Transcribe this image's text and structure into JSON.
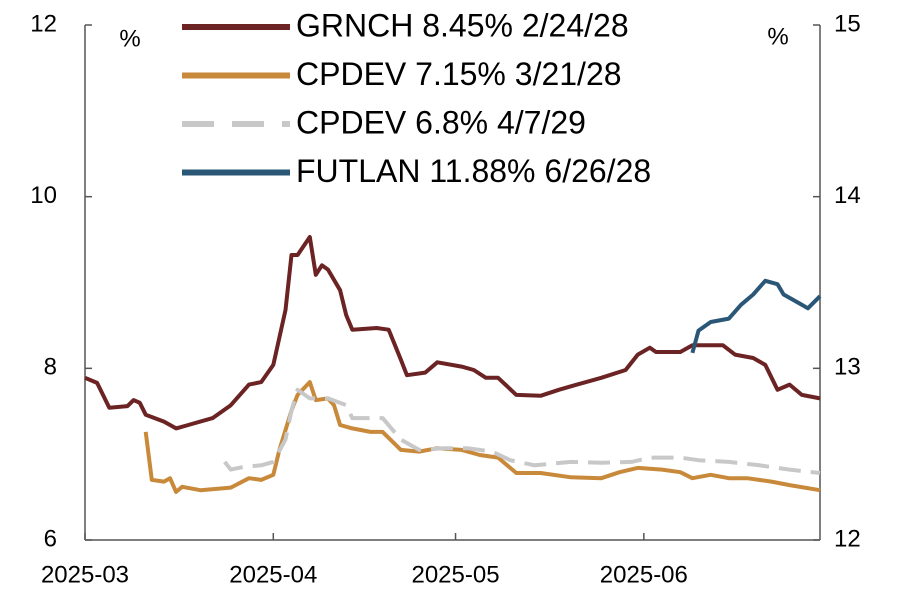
{
  "chart_data": {
    "type": "line",
    "ylabel": "%",
    "y2label": "%",
    "xlim": [
      0,
      121
    ],
    "xticks": [
      {
        "value": 0,
        "label": "2025-03"
      },
      {
        "value": 31,
        "label": "2025-04"
      },
      {
        "value": 61,
        "label": "2025-05"
      },
      {
        "value": 92,
        "label": "2025-06"
      }
    ],
    "ylim": [
      6,
      12
    ],
    "yticks": [
      6,
      8,
      10,
      12
    ],
    "y2lim": [
      12,
      15
    ],
    "y2ticks": [
      12,
      13,
      14,
      15
    ],
    "legend": "top",
    "series": [
      {
        "name": "GRNCH 8.45% 2/24/28",
        "color": "#6b2323",
        "line_style": "solid",
        "axis": "y",
        "x": [
          0,
          2,
          4,
          7,
          8,
          9,
          10,
          13,
          15,
          17,
          21,
          24,
          27,
          29,
          31,
          33,
          34,
          35,
          37,
          38,
          39,
          40,
          42,
          43,
          44,
          48,
          50,
          52,
          53,
          56,
          58,
          62,
          64,
          66,
          68,
          71,
          75,
          78,
          81,
          85,
          89,
          91,
          93,
          94,
          98,
          100,
          105,
          107,
          110,
          112,
          114,
          116,
          118,
          121
        ],
        "values": [
          7.89,
          7.83,
          7.54,
          7.56,
          7.63,
          7.6,
          7.46,
          7.38,
          7.3,
          7.34,
          7.42,
          7.57,
          7.81,
          7.84,
          8.04,
          8.68,
          9.32,
          9.32,
          9.53,
          9.09,
          9.2,
          9.15,
          8.91,
          8.62,
          8.45,
          8.47,
          8.45,
          8.1,
          7.92,
          7.95,
          8.07,
          8.02,
          7.98,
          7.89,
          7.89,
          7.69,
          7.68,
          7.75,
          7.81,
          7.89,
          7.98,
          8.16,
          8.24,
          8.19,
          8.19,
          8.27,
          8.27,
          8.16,
          8.12,
          8.04,
          7.75,
          7.81,
          7.69,
          7.65
        ]
      },
      {
        "name": "CPDEV 7.15% 3/21/28",
        "color": "#c8893a",
        "line_style": "solid",
        "axis": "y",
        "x": [
          10,
          11,
          13,
          14,
          15,
          16,
          19,
          24,
          27,
          29,
          31,
          32,
          34,
          35,
          37,
          38,
          40,
          41,
          42,
          44,
          47,
          49,
          52,
          55,
          58,
          62,
          65,
          68,
          71,
          75,
          80,
          85,
          88,
          91,
          95,
          98,
          100,
          103,
          106,
          109,
          113,
          116,
          121
        ],
        "values": [
          7.26,
          6.7,
          6.68,
          6.72,
          6.56,
          6.62,
          6.58,
          6.61,
          6.72,
          6.7,
          6.76,
          7.05,
          7.51,
          7.69,
          7.84,
          7.63,
          7.65,
          7.57,
          7.34,
          7.3,
          7.26,
          7.26,
          7.05,
          7.03,
          7.07,
          7.05,
          6.99,
          6.96,
          6.78,
          6.78,
          6.73,
          6.72,
          6.79,
          6.84,
          6.82,
          6.79,
          6.72,
          6.76,
          6.72,
          6.72,
          6.68,
          6.64,
          6.58
        ]
      },
      {
        "name": "CPDEV 6.8% 4/7/29",
        "color": "#c8c8c8",
        "line_style": "dashed",
        "axis": "y",
        "x": [
          23,
          24,
          26,
          29,
          31,
          33,
          34,
          35,
          37,
          40,
          43,
          44,
          49,
          52,
          55,
          59,
          63,
          67,
          70,
          74,
          80,
          85,
          90,
          93,
          98,
          101,
          106,
          111,
          116,
          121
        ],
        "values": [
          6.91,
          6.82,
          6.85,
          6.87,
          6.91,
          7.17,
          7.51,
          7.75,
          7.65,
          7.65,
          7.57,
          7.42,
          7.42,
          7.17,
          7.05,
          7.07,
          7.07,
          7.03,
          6.93,
          6.87,
          6.91,
          6.9,
          6.91,
          6.96,
          6.96,
          6.93,
          6.91,
          6.87,
          6.82,
          6.78
        ]
      },
      {
        "name": "FUTLAN 11.88% 6/26/28",
        "color": "#2b5777",
        "line_style": "solid",
        "axis": "y2",
        "x": [
          100,
          101,
          103,
          106,
          108,
          110,
          112,
          114,
          115,
          118,
          119,
          121
        ],
        "values": [
          13.09,
          13.22,
          13.27,
          13.29,
          13.37,
          13.43,
          13.51,
          13.49,
          13.43,
          13.37,
          13.35,
          13.42
        ]
      }
    ]
  }
}
